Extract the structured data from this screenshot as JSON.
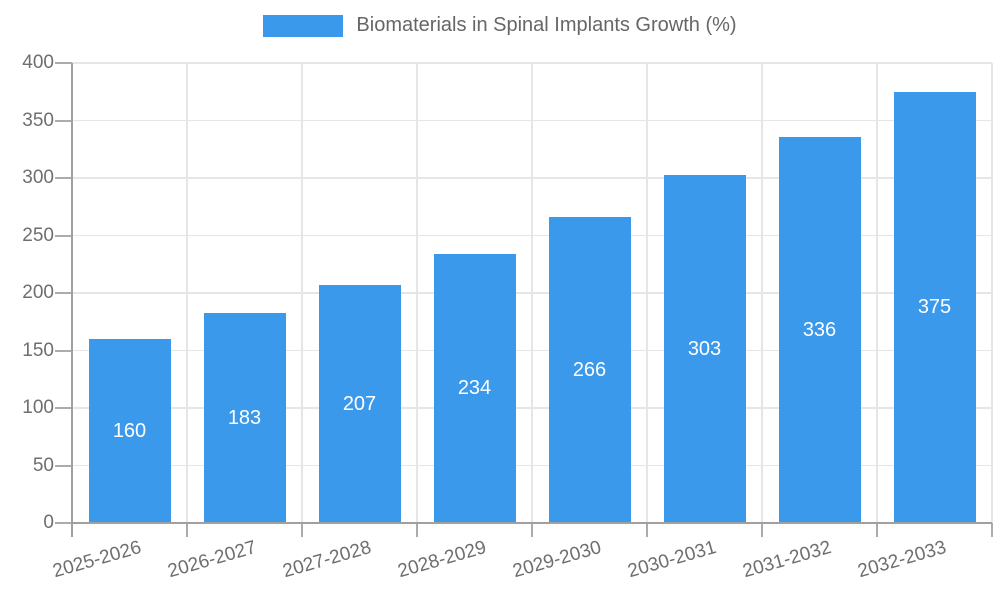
{
  "legend": {
    "label": "Biomaterials in Spinal Implants Growth (%)"
  },
  "chart_data": {
    "type": "bar",
    "title": "Biomaterials in Spinal Implants Growth (%)",
    "categories": [
      "2025-2026",
      "2026-2027",
      "2027-2028",
      "2028-2029",
      "2029-2030",
      "2030-2031",
      "2031-2032",
      "2032-2033"
    ],
    "values": [
      160,
      183,
      207,
      234,
      266,
      303,
      336,
      375
    ],
    "xlabel": "",
    "ylabel": "",
    "ylim": [
      0,
      400
    ],
    "yticks": [
      0,
      50,
      100,
      150,
      200,
      250,
      300,
      350,
      400
    ],
    "grid": true,
    "legend_position": "top",
    "bar_value_labels_shown": true
  },
  "colors": {
    "bar": "#3b99ec",
    "bar_label": "#ffffff",
    "grid": "#e6e6e6",
    "axis": "#a0a0a0",
    "tick": "#ababab",
    "text": "#6e6e6e",
    "legend_text": "#666666",
    "background": "#ffffff"
  }
}
